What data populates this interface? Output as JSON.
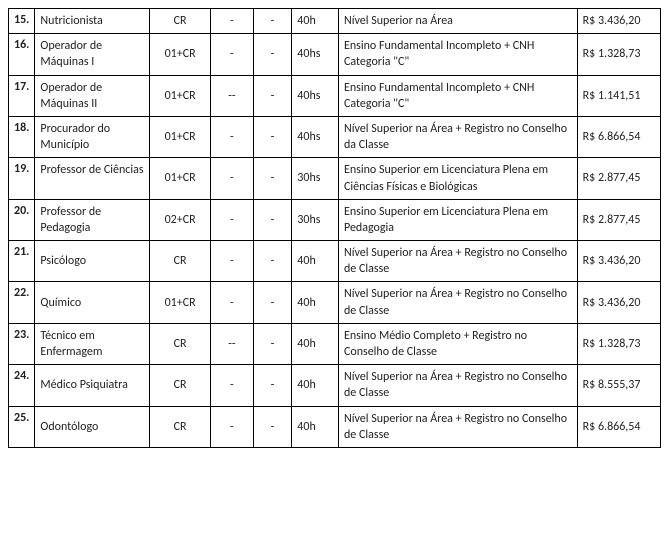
{
  "rows": [
    {
      "num": "15.",
      "cargo": "Nutricionista",
      "vagas": "CR",
      "d1": "-",
      "d2": "-",
      "carga": "40h",
      "esc": "Nível Superior na Área",
      "sal": "R$ 3.436,20"
    },
    {
      "num": "16.",
      "cargo": "Operador de Máquinas I",
      "vagas": "01+CR",
      "d1": "-",
      "d2": "-",
      "carga": "40hs",
      "esc": "Ensino Fundamental Incompleto + CNH Categoria \"C\"",
      "sal": "R$ 1.328,73"
    },
    {
      "num": "17.",
      "cargo": "Operador de Máquinas II",
      "vagas": "01+CR",
      "d1": "--",
      "d2": "-",
      "carga": "40hs",
      "esc": "Ensino Fundamental Incompleto + CNH Categoria \"C\"",
      "sal": "R$ 1.141,51"
    },
    {
      "num": "18.",
      "cargo": "Procurador do Município",
      "vagas": "01+CR",
      "d1": "-",
      "d2": "-",
      "carga": "40hs",
      "esc": "Nível Superior na Área + Registro no Conselho da Classe",
      "sal": "R$ 6.866,54"
    },
    {
      "num": "19.",
      "cargo": "Professor de Ciências",
      "vagas": "01+CR",
      "d1": "-",
      "d2": "-",
      "carga": "30hs",
      "esc": "Ensino Superior em Licenciatura Plena em Ciências Físicas e Biológicas",
      "sal": "R$ 2.877,45"
    },
    {
      "num": "20.",
      "cargo": "Professor de Pedagogia",
      "vagas": "02+CR",
      "d1": "-",
      "d2": "-",
      "carga": "30hs",
      "esc": "Ensino Superior em Licenciatura Plena em Pedagogia",
      "sal": "R$ 2.877,45"
    },
    {
      "num": "21.",
      "cargo": "Psicólogo",
      "vagas": "CR",
      "d1": "-",
      "d2": "-",
      "carga": "40h",
      "esc": "Nível Superior na Área + Registro no Conselho de Classe",
      "sal": "R$ 3.436,20"
    },
    {
      "num": "22.",
      "cargo": "Químico",
      "vagas": "01+CR",
      "d1": "-",
      "d2": "-",
      "carga": "40h",
      "esc": "Nível Superior na Área + Registro no Conselho de Classe",
      "sal": "R$ 3.436,20"
    },
    {
      "num": "23.",
      "cargo": "Técnico em Enfermagem",
      "vagas": "CR",
      "d1": "--",
      "d2": "-",
      "carga": "40h",
      "esc": "Ensino Médio Completo + Registro no Conselho de Classe",
      "sal": "R$ 1.328,73"
    },
    {
      "num": "24.",
      "cargo": "Médico Psiquiatra",
      "vagas": "CR",
      "d1": "-",
      "d2": "-",
      "carga": "40h",
      "esc": "Nível Superior na Área + Registro no Conselho de Classe",
      "sal": "R$ 8.555,37"
    },
    {
      "num": "25.",
      "cargo": "Odontólogo",
      "vagas": "CR",
      "d1": "-",
      "d2": "-",
      "carga": "40h",
      "esc": "Nível Superior na Área + Registro no Conselho de Classe",
      "sal": "R$ 6.866,54"
    }
  ]
}
